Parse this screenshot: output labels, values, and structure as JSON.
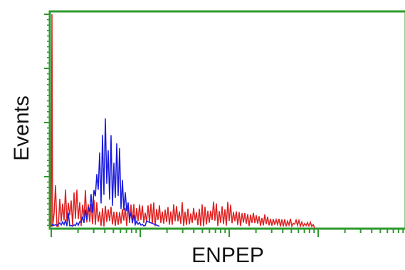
{
  "chart_data": {
    "type": "line",
    "title": "",
    "xlabel": "ENPEP",
    "ylabel": "Events",
    "x_scale": "log",
    "grid": false,
    "legend": "none",
    "series": [
      {
        "color": "#1a1adf",
        "description_note": ""
      },
      {
        "color": "#e02020",
        "description_note": ""
      }
    ]
  },
  "colors": {
    "frame": "#2e9a2e",
    "blue_series": "#1a1adf",
    "red_series": "#e02020"
  }
}
